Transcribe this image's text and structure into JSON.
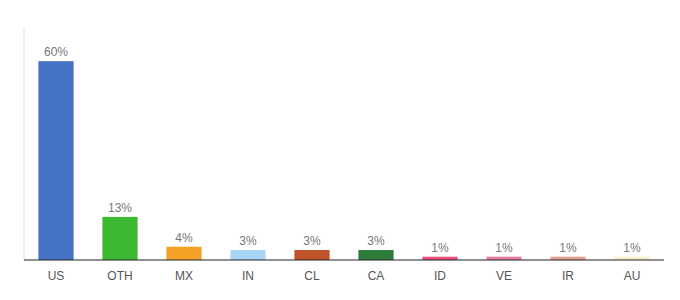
{
  "chart_data": {
    "type": "bar",
    "categories": [
      "US",
      "OTH",
      "MX",
      "IN",
      "CL",
      "CA",
      "ID",
      "VE",
      "IR",
      "AU"
    ],
    "values": [
      60,
      13,
      4,
      3,
      3,
      3,
      1,
      1,
      1,
      1
    ],
    "value_labels": [
      "60%",
      "13%",
      "4%",
      "3%",
      "3%",
      "3%",
      "1%",
      "1%",
      "1%",
      "1%"
    ],
    "colors": [
      "#4472c4",
      "#3cb832",
      "#f4a225",
      "#a8d4f5",
      "#c0522a",
      "#2d7a3a",
      "#e84f7b",
      "#e87fa0",
      "#e8a090",
      "#f5f0c8"
    ],
    "ylim": [
      0,
      70
    ],
    "data_labels": true,
    "tick_labels": "x"
  }
}
